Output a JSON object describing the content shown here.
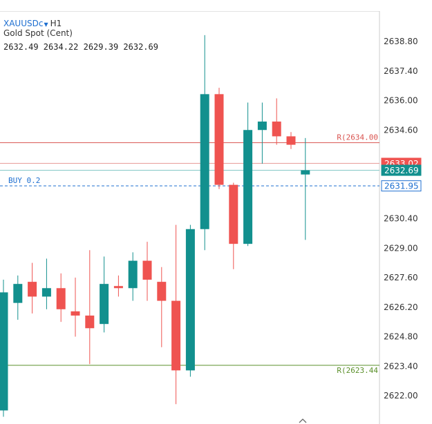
{
  "header": {
    "symbol": "XAUUSDc",
    "timeframe": "H1",
    "description": "Gold Spot (Cent)",
    "ohlc": "2632.49 2634.22 2629.39 2632.69"
  },
  "colors": {
    "bull": "#12908e",
    "bear": "#ef5350",
    "resistance": "#d9534f",
    "support": "#5a8f29",
    "buy": "#1e6fd0",
    "axis_text": "#333333"
  },
  "chart_data": {
    "type": "candlestick",
    "y_axis_side": "right",
    "ylim": [
      2620.9,
      2640.5
    ],
    "y_ticks": [
      2638.8,
      2637.4,
      2636.0,
      2634.6,
      2630.4,
      2629.0,
      2627.6,
      2626.2,
      2624.8,
      2623.4,
      2622.0
    ],
    "candles": [
      {
        "open": 2621.3,
        "high": 2627.5,
        "low": 2621.0,
        "close": 2626.9
      },
      {
        "open": 2626.4,
        "high": 2627.7,
        "low": 2625.6,
        "close": 2627.3
      },
      {
        "open": 2627.4,
        "high": 2628.3,
        "low": 2625.9,
        "close": 2626.7
      },
      {
        "open": 2626.7,
        "high": 2628.5,
        "low": 2626.1,
        "close": 2627.1
      },
      {
        "open": 2627.1,
        "high": 2627.8,
        "low": 2625.5,
        "close": 2626.1
      },
      {
        "open": 2626.0,
        "high": 2627.6,
        "low": 2624.8,
        "close": 2625.8
      },
      {
        "open": 2625.8,
        "high": 2628.9,
        "low": 2623.5,
        "close": 2625.2
      },
      {
        "open": 2625.4,
        "high": 2628.6,
        "low": 2625.0,
        "close": 2627.3
      },
      {
        "open": 2627.2,
        "high": 2627.7,
        "low": 2626.7,
        "close": 2627.1
      },
      {
        "open": 2627.1,
        "high": 2628.8,
        "low": 2626.5,
        "close": 2628.4
      },
      {
        "open": 2628.4,
        "high": 2629.3,
        "low": 2626.5,
        "close": 2627.5
      },
      {
        "open": 2627.4,
        "high": 2628.1,
        "low": 2624.3,
        "close": 2626.5
      },
      {
        "open": 2626.5,
        "high": 2630.1,
        "low": 2621.6,
        "close": 2623.2
      },
      {
        "open": 2623.2,
        "high": 2630.1,
        "low": 2622.9,
        "close": 2629.9
      },
      {
        "open": 2629.9,
        "high": 2639.1,
        "low": 2628.9,
        "close": 2636.3
      },
      {
        "open": 2636.3,
        "high": 2636.6,
        "low": 2631.8,
        "close": 2632.0
      },
      {
        "open": 2632.0,
        "high": 2632.1,
        "low": 2628.0,
        "close": 2629.2
      },
      {
        "open": 2629.2,
        "high": 2635.9,
        "low": 2629.1,
        "close": 2634.6
      },
      {
        "open": 2634.6,
        "high": 2635.9,
        "low": 2633.0,
        "close": 2635.0
      },
      {
        "open": 2635.0,
        "high": 2636.1,
        "low": 2633.9,
        "close": 2634.3
      },
      {
        "open": 2634.3,
        "high": 2634.5,
        "low": 2633.7,
        "close": 2633.9
      },
      {
        "open": 2632.49,
        "high": 2634.22,
        "low": 2629.39,
        "close": 2632.69
      }
    ],
    "levels": [
      {
        "label": "R(2634.00",
        "value": 2634.0,
        "style": "resistance"
      },
      {
        "label": "R(2623.44",
        "value": 2623.44,
        "style": "support"
      },
      {
        "label": "BUY 0.2",
        "value": 2631.95,
        "style": "buy",
        "price_tag": "2631.95"
      },
      {
        "label": "",
        "value": 2633.02,
        "style": "bid",
        "price_tag": "2633.02"
      },
      {
        "label": "",
        "value": 2632.69,
        "style": "current",
        "price_tag": "2632.69"
      }
    ]
  }
}
